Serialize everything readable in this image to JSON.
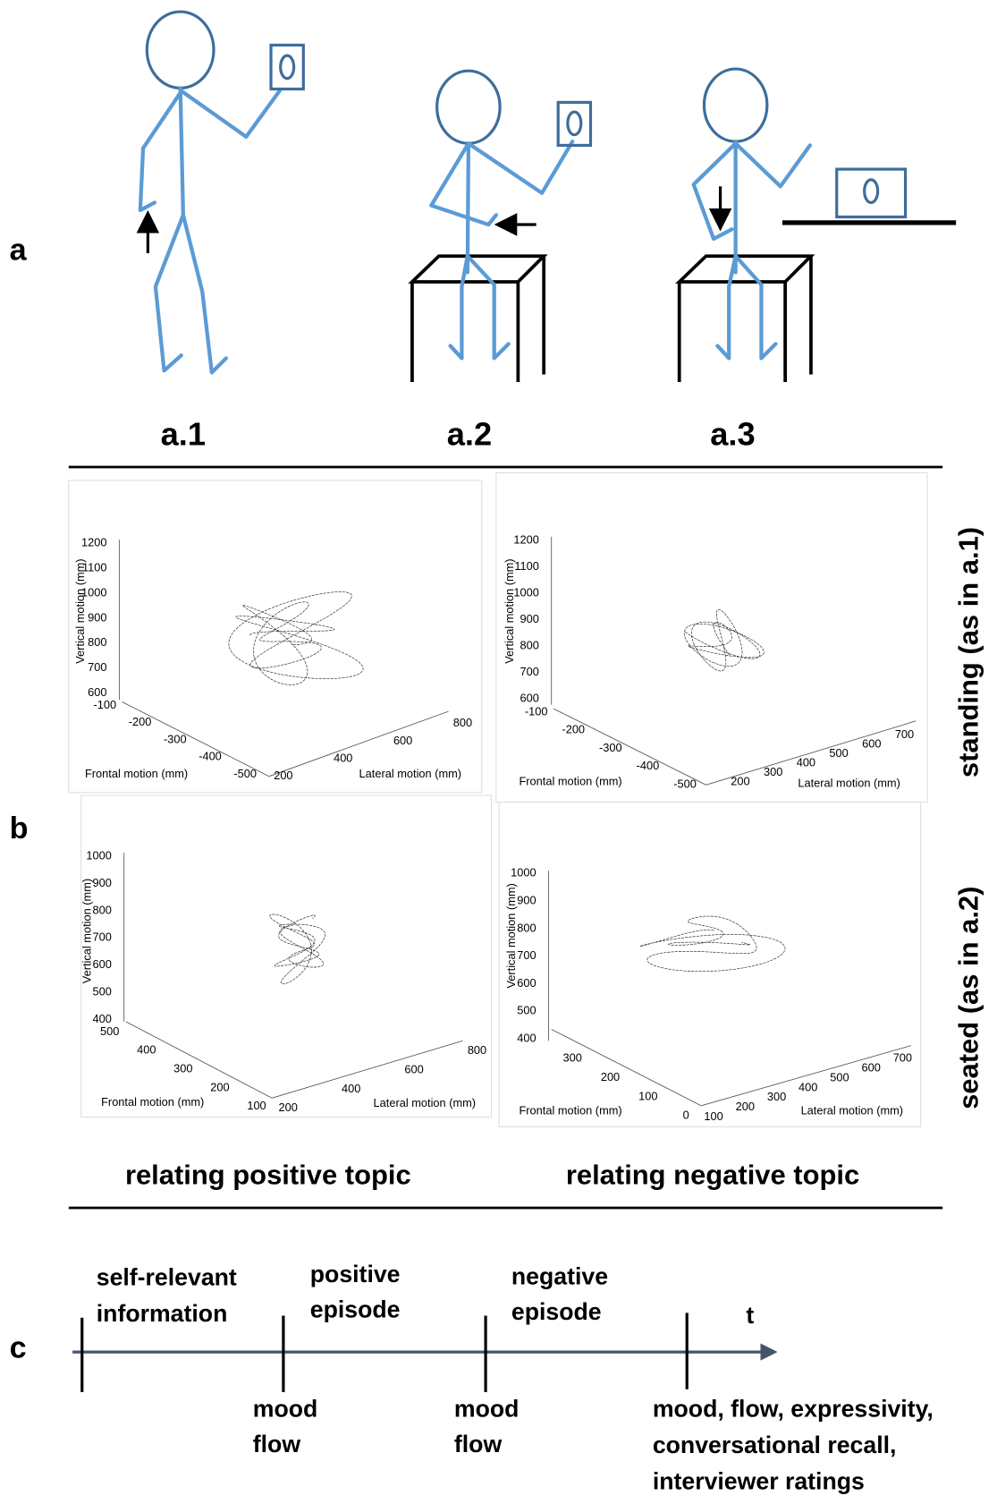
{
  "panel_a": {
    "label": "a",
    "figures": [
      "a.1",
      "a.2",
      "a.3"
    ]
  },
  "panel_b": {
    "label": "b",
    "row_labels": [
      "standing (as in a.1)",
      "seated (as in a.2)"
    ],
    "column_labels": [
      "relating positive topic",
      "relating negative topic"
    ],
    "plots": [
      {
        "z_label": "Vertical motion (mm)",
        "x_label": "Frontal motion (mm)",
        "y_label": "Lateral motion (mm)",
        "z_ticks": [
          1200,
          1100,
          1000,
          900,
          800,
          700,
          600
        ],
        "x_ticks": [
          -100,
          -200,
          -300,
          -400,
          -500
        ],
        "y_ticks": [
          200,
          400,
          600,
          800
        ]
      },
      {
        "z_label": "Vertical motion (mm)",
        "x_label": "Frontal motion (mm)",
        "y_label": "Lateral motion (mm)",
        "z_ticks": [
          1200,
          1100,
          1000,
          900,
          800,
          700,
          600
        ],
        "x_ticks": [
          -100,
          -200,
          -300,
          -400,
          -500
        ],
        "y_ticks": [
          200,
          300,
          400,
          500,
          600,
          700
        ]
      },
      {
        "z_label": "Vertical motion (mm)",
        "x_label": "Frontal motion (mm)",
        "y_label": "Lateral motion (mm)",
        "z_ticks": [
          1000,
          900,
          800,
          700,
          600,
          500,
          400
        ],
        "x_ticks": [
          500,
          400,
          300,
          200,
          100
        ],
        "y_ticks": [
          200,
          400,
          600,
          800
        ]
      },
      {
        "z_label": "Vertical motion (mm)",
        "x_label": "Frontal motion (mm)",
        "y_label": "Lateral motion (mm)",
        "z_ticks": [
          1000,
          900,
          800,
          700,
          600,
          500,
          400
        ],
        "x_ticks": [
          300,
          200,
          100,
          0
        ],
        "y_ticks": [
          100,
          200,
          300,
          400,
          500,
          600,
          700
        ]
      }
    ]
  },
  "panel_c": {
    "label": "c",
    "axis_label": "t",
    "phases": [
      [
        "self-relevant",
        "information"
      ],
      [
        "positive",
        "episode"
      ],
      [
        "negative",
        "episode"
      ]
    ],
    "measures": [
      [
        "mood",
        "flow"
      ],
      [
        "mood",
        "flow"
      ],
      [
        "mood, flow, expressivity,",
        "conversational recall,",
        "interviewer ratings"
      ]
    ]
  }
}
